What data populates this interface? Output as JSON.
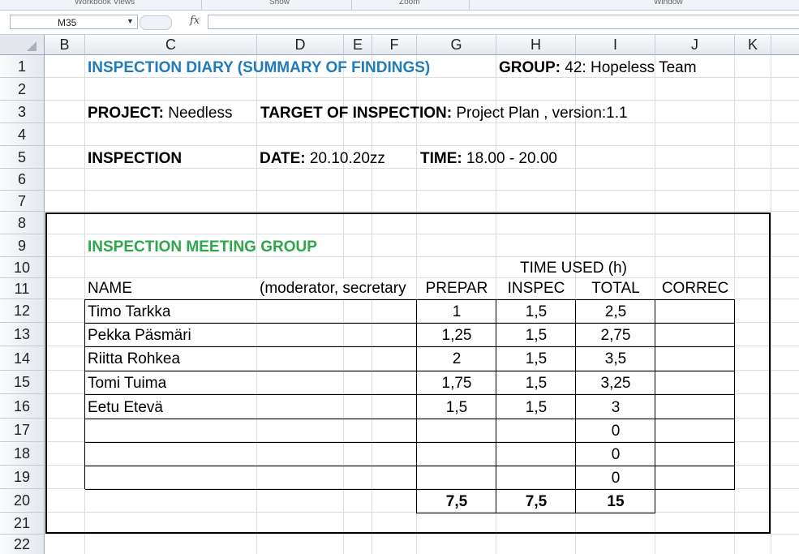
{
  "ribbon": {
    "groups": [
      "Workbook Views",
      "Show",
      "Zoom",
      "Window"
    ]
  },
  "formula_bar": {
    "name_box": "M35",
    "fx_label": "fx",
    "formula": ""
  },
  "columns": [
    "B",
    "C",
    "D",
    "E",
    "F",
    "G",
    "H",
    "I",
    "J",
    "K"
  ],
  "rows": [
    "1",
    "2",
    "3",
    "4",
    "5",
    "6",
    "7",
    "8",
    "9",
    "10",
    "11",
    "12",
    "13",
    "14",
    "15",
    "16",
    "17",
    "18",
    "19",
    "20",
    "21",
    "22"
  ],
  "sheet": {
    "title": "INSPECTION DIARY (SUMMARY OF FINDINGS)",
    "group_label": "GROUP:",
    "group_value": "42: Hopeless Team",
    "project_label": "PROJECT:",
    "project_value": "Needless",
    "target_label": "TARGET OF INSPECTION:",
    "target_value": "Project Plan  , version:1.1",
    "inspection_label": "INSPECTION",
    "date_label": "DATE:",
    "date_value": "20.10.20zz",
    "time_label": "TIME:",
    "time_value": "18.00 - 20.00",
    "meeting_group_title": "INSPECTION MEETING GROUP",
    "time_used_header": "TIME USED (h)",
    "headers": {
      "name": "NAME",
      "role": "(moderator, secretary",
      "prepar": "PREPAR",
      "inspec": "INSPEC",
      "total": "TOTAL",
      "correc": "CORREC"
    },
    "members": [
      {
        "name": "Timo  Tarkka",
        "prepar": "1",
        "inspec": "1,5",
        "total": "2,5"
      },
      {
        "name": "Pekka Päsmäri",
        "prepar": "1,25",
        "inspec": "1,5",
        "total": "2,75"
      },
      {
        "name": "Riitta Rohkea",
        "prepar": "2",
        "inspec": "1,5",
        "total": "3,5"
      },
      {
        "name": "Tomi Tuima",
        "prepar": "1,75",
        "inspec": "1,5",
        "total": "3,25"
      },
      {
        "name": "Eetu Etevä",
        "prepar": "1,5",
        "inspec": "1,5",
        "total": "3"
      },
      {
        "name": "",
        "prepar": "",
        "inspec": "",
        "total": "0"
      },
      {
        "name": "",
        "prepar": "",
        "inspec": "",
        "total": "0"
      },
      {
        "name": "",
        "prepar": "",
        "inspec": "",
        "total": "0"
      }
    ],
    "totals": {
      "prepar": "7,5",
      "inspec": "7,5",
      "total": "15"
    }
  }
}
